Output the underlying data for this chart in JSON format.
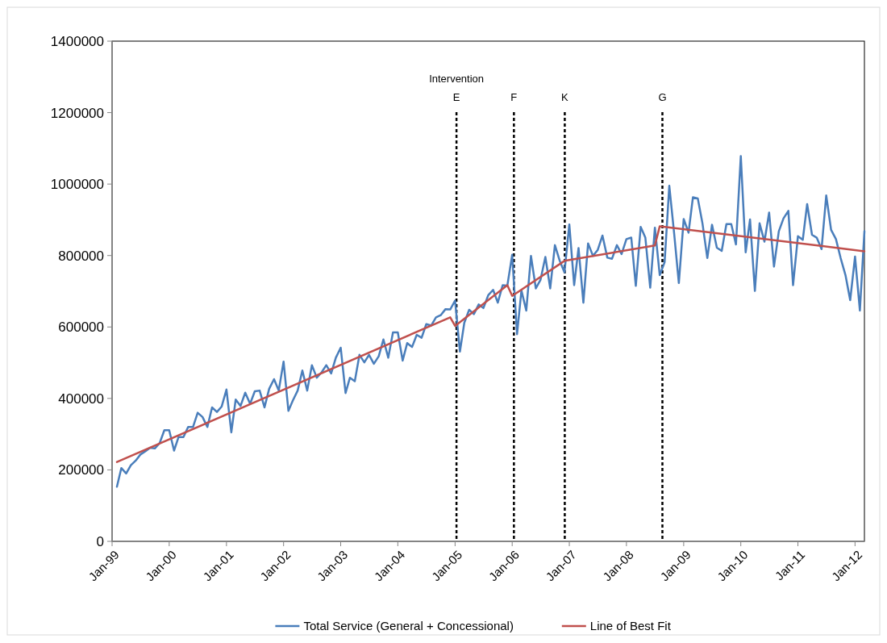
{
  "chart_data": {
    "type": "line",
    "x": [
      "1999-02",
      "1999-03",
      "1999-04",
      "1999-05",
      "1999-06",
      "1999-07",
      "1999-08",
      "1999-09",
      "1999-10",
      "1999-11",
      "1999-12",
      "2000-01",
      "2000-02",
      "2000-03",
      "2000-04",
      "2000-05",
      "2000-06",
      "2000-07",
      "2000-08",
      "2000-09",
      "2000-10",
      "2000-11",
      "2000-12",
      "2001-01",
      "2001-02",
      "2001-03",
      "2001-04",
      "2001-05",
      "2001-06",
      "2001-07",
      "2001-08",
      "2001-09",
      "2001-10",
      "2001-11",
      "2001-12",
      "2002-01",
      "2002-02",
      "2002-03",
      "2002-04",
      "2002-05",
      "2002-06",
      "2002-07",
      "2002-08",
      "2002-09",
      "2002-10",
      "2002-11",
      "2002-12",
      "2003-01",
      "2003-02",
      "2003-03",
      "2003-04",
      "2003-05",
      "2003-06",
      "2003-07",
      "2003-08",
      "2003-09",
      "2003-10",
      "2003-11",
      "2003-12",
      "2004-01",
      "2004-02",
      "2004-03",
      "2004-04",
      "2004-05",
      "2004-06",
      "2004-07",
      "2004-08",
      "2004-09",
      "2004-10",
      "2004-11",
      "2004-12",
      "2005-01",
      "2005-02",
      "2005-03",
      "2005-04",
      "2005-05",
      "2005-06",
      "2005-07",
      "2005-08",
      "2005-09",
      "2005-10",
      "2005-11",
      "2005-12",
      "2006-01",
      "2006-02",
      "2006-03",
      "2006-04",
      "2006-05",
      "2006-06",
      "2006-07",
      "2006-08",
      "2006-09",
      "2006-10",
      "2006-11",
      "2006-12",
      "2007-01",
      "2007-02",
      "2007-03",
      "2007-04",
      "2007-05",
      "2007-06",
      "2007-07",
      "2007-08",
      "2007-09",
      "2007-10",
      "2007-11",
      "2007-12",
      "2008-01",
      "2008-02",
      "2008-03",
      "2008-04",
      "2008-05",
      "2008-06",
      "2008-07",
      "2008-08",
      "2008-09",
      "2008-10",
      "2008-11",
      "2008-12",
      "2009-01",
      "2009-02",
      "2009-03",
      "2009-04",
      "2009-05",
      "2009-06",
      "2009-07",
      "2009-08",
      "2009-09",
      "2009-10",
      "2009-11",
      "2009-12",
      "2010-01",
      "2010-02",
      "2010-03",
      "2010-04",
      "2010-05",
      "2010-06",
      "2010-07",
      "2010-08",
      "2010-09",
      "2010-10",
      "2010-11",
      "2010-12",
      "2011-01",
      "2011-02",
      "2011-03",
      "2011-04",
      "2011-05",
      "2011-06",
      "2011-07",
      "2011-08",
      "2011-09",
      "2011-10",
      "2011-11",
      "2011-12",
      "2012-01",
      "2012-02",
      "2012-03"
    ],
    "series": [
      {
        "name": "Total Service (General + Concessional)",
        "color": "#4a7ebb",
        "values": [
          153000,
          205000,
          190000,
          213000,
          226000,
          243000,
          252000,
          262000,
          260000,
          275000,
          311000,
          311000,
          254000,
          292000,
          292000,
          320000,
          320000,
          360000,
          348000,
          320000,
          375000,
          362000,
          377000,
          425000,
          305000,
          397000,
          379000,
          416000,
          385000,
          420000,
          422000,
          375000,
          427000,
          454000,
          422000,
          503000,
          365000,
          394000,
          422000,
          478000,
          422000,
          493000,
          458000,
          473000,
          493000,
          470000,
          514000,
          542000,
          415000,
          458000,
          448000,
          522000,
          501000,
          522000,
          497000,
          518000,
          565000,
          514000,
          585000,
          585000,
          506000,
          555000,
          544000,
          578000,
          570000,
          608000,
          604000,
          627000,
          633000,
          650000,
          649000,
          674000,
          531000,
          612000,
          648000,
          636000,
          663000,
          653000,
          689000,
          704000,
          668000,
          717000,
          716000,
          802000,
          580000,
          702000,
          646000,
          799000,
          708000,
          732000,
          796000,
          708000,
          829000,
          785000,
          753000,
          887000,
          717000,
          821000,
          668000,
          834000,
          799000,
          815000,
          856000,
          794000,
          791000,
          829000,
          804000,
          846000,
          850000,
          715000,
          880000,
          850000,
          710000,
          878000,
          745000,
          781000,
          995000,
          862000,
          723000,
          902000,
          864000,
          963000,
          960000,
          890000,
          793000,
          886000,
          822000,
          813000,
          888000,
          888000,
          831000,
          1078000,
          809000,
          901000,
          701000,
          890000,
          839000,
          920000,
          769000,
          868000,
          904000,
          925000,
          717000,
          854000,
          844000,
          944000,
          858000,
          850000,
          818000,
          968000,
          872000,
          846000,
          793000,
          745000,
          675000,
          797000,
          646000,
          868000
        ]
      },
      {
        "name": "Line of Best Fit",
        "color": "#c0504d",
        "x": [
          "1999-02",
          "2004-12",
          "2005-01",
          "2005-12",
          "2006-01",
          "2006-12",
          "2008-07",
          "2008-08",
          "2012-03"
        ],
        "values": [
          222000,
          627000,
          603000,
          717000,
          687000,
          785000,
          828000,
          882000,
          812000
        ]
      }
    ],
    "xlim": [
      "1999-01",
      "2012-03"
    ],
    "xticks": [
      {
        "value": "1999-01",
        "label": "Jan-99"
      },
      {
        "value": "2000-01",
        "label": "Jan-00"
      },
      {
        "value": "2001-01",
        "label": "Jan-01"
      },
      {
        "value": "2002-01",
        "label": "Jan-02"
      },
      {
        "value": "2003-01",
        "label": "Jan-03"
      },
      {
        "value": "2004-01",
        "label": "Jan-04"
      },
      {
        "value": "2005-01",
        "label": "Jan-05"
      },
      {
        "value": "2006-01",
        "label": "Jan-06"
      },
      {
        "value": "2007-01",
        "label": "Jan-07"
      },
      {
        "value": "2008-01",
        "label": "Jan-08"
      },
      {
        "value": "2009-01",
        "label": "Jan-09"
      },
      {
        "value": "2010-01",
        "label": "Jan-10"
      },
      {
        "value": "2011-01",
        "label": "Jan-11"
      },
      {
        "value": "2012-01",
        "label": "Jan-12"
      }
    ],
    "ylim": [
      0,
      1400000
    ],
    "yticks": [
      0,
      200000,
      400000,
      600000,
      800000,
      1000000,
      1200000,
      1400000
    ],
    "ref_lines": [
      {
        "axis": "x",
        "value": "2005-01-10",
        "label": "E",
        "color": "#000000",
        "line_style": "dashed"
      },
      {
        "axis": "x",
        "value": "2006-01-12",
        "label": "F",
        "color": "#000000",
        "line_style": "dashed"
      },
      {
        "axis": "x",
        "value": "2006-12-03",
        "label": "K",
        "color": "#000000",
        "line_style": "dashed"
      },
      {
        "axis": "x",
        "value": "2008-08-18",
        "label": "G",
        "color": "#000000",
        "line_style": "dashed"
      }
    ],
    "annotations": [
      "Intervention"
    ],
    "grid": false,
    "legend": "bottom",
    "marker": "none",
    "line_style": "solid"
  }
}
